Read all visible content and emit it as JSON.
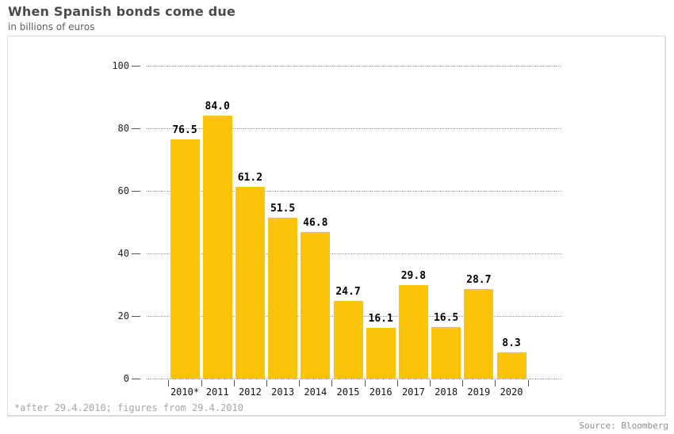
{
  "header": {
    "title": "When Spanish bonds come due",
    "subtitle": "in billions of euros"
  },
  "chart_data": {
    "type": "bar",
    "title": "When Spanish bonds come due",
    "subtitle": "in billions of euros",
    "categories": [
      "2010*",
      "2011",
      "2012",
      "2013",
      "2014",
      "2015",
      "2016",
      "2017",
      "2018",
      "2019",
      "2020"
    ],
    "values": [
      76.5,
      84.0,
      61.2,
      51.5,
      46.8,
      24.7,
      16.1,
      29.8,
      16.5,
      28.7,
      8.3
    ],
    "xlabel": "",
    "ylabel": "",
    "ylim": [
      0,
      100
    ],
    "yticks": [
      0,
      20,
      40,
      60,
      80,
      100
    ],
    "grid": "horizontal dotted",
    "legend": "none",
    "value_label_decimals": 1
  },
  "footnote": "*after 29.4.2010; figures from 29.4.2010",
  "source": "Source: Bloomberg",
  "colors": {
    "bar": "#FCC408",
    "title": "#4A4A4A",
    "grid": "#9A9A9A",
    "axis_marks": "#555555",
    "axis_text": "#222222",
    "value_text": "#000000",
    "footnote": "#A6A6A6",
    "source": "#8C8C8C",
    "panel_border": "#DCDCDC"
  }
}
